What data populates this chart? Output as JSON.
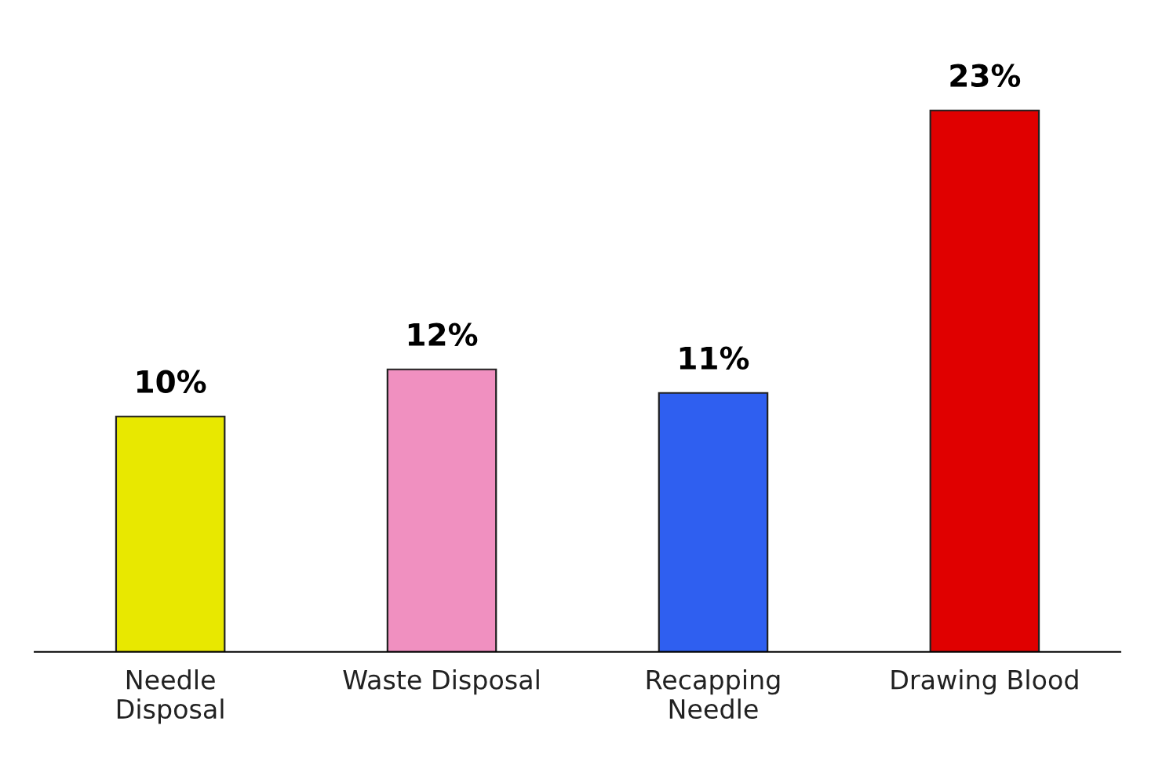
{
  "chart_data": {
    "type": "bar",
    "categories": [
      "Needle\nDisposal",
      "Waste Disposal",
      "Recapping\nNeedle",
      "Drawing Blood"
    ],
    "values": [
      10,
      12,
      11,
      23
    ],
    "colors": [
      "#e8e800",
      "#f090c0",
      "#2f5ff0",
      "#e00000"
    ],
    "value_labels": [
      "10%",
      "12%",
      "11%",
      "23%"
    ],
    "grid": false,
    "legend": false
  }
}
